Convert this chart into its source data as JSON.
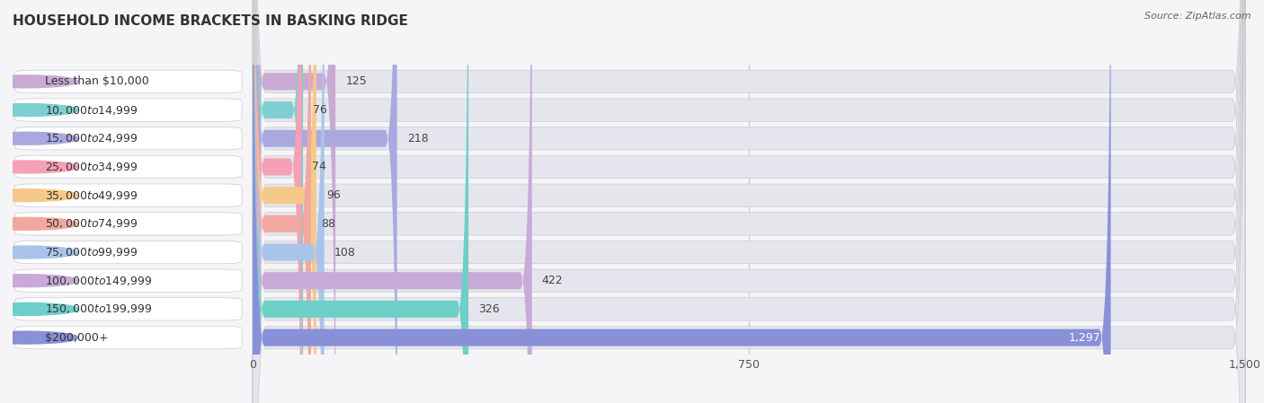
{
  "title": "HOUSEHOLD INCOME BRACKETS IN BASKING RIDGE",
  "source": "Source: ZipAtlas.com",
  "categories": [
    "Less than $10,000",
    "$10,000 to $14,999",
    "$15,000 to $24,999",
    "$25,000 to $34,999",
    "$35,000 to $49,999",
    "$50,000 to $74,999",
    "$75,000 to $99,999",
    "$100,000 to $149,999",
    "$150,000 to $199,999",
    "$200,000+"
  ],
  "values": [
    125,
    76,
    218,
    74,
    96,
    88,
    108,
    422,
    326,
    1297
  ],
  "bar_colors": [
    "#c9aad5",
    "#7ecfcf",
    "#a9a9e0",
    "#f4a0b5",
    "#f5c98a",
    "#f0a8a0",
    "#a8c4ea",
    "#c8aad8",
    "#6ecfc8",
    "#8890d8"
  ],
  "fig_bg": "#f5f5f8",
  "bar_bg_color": "#e5e5ee",
  "label_bg_color": "#ffffff",
  "xlim_max": 1500,
  "xticks": [
    0,
    750,
    1500
  ],
  "title_fontsize": 11,
  "label_fontsize": 9,
  "value_fontsize": 9,
  "source_fontsize": 8
}
